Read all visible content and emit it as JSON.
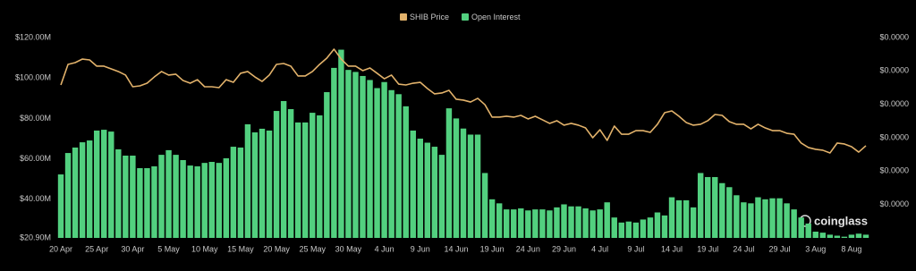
{
  "chart_data": {
    "type": "bar",
    "legend": "top",
    "categories": [
      "20 Apr",
      null,
      null,
      null,
      null,
      "25 Apr",
      null,
      null,
      null,
      null,
      "30 Apr",
      null,
      null,
      null,
      null,
      "5 May",
      null,
      null,
      null,
      null,
      "10 May",
      null,
      null,
      null,
      null,
      "15 May",
      null,
      null,
      null,
      null,
      "20 May",
      null,
      null,
      null,
      null,
      "25 May",
      null,
      null,
      null,
      null,
      "30 May",
      null,
      null,
      null,
      null,
      "4 Jun",
      null,
      null,
      null,
      null,
      "9 Jun",
      null,
      null,
      null,
      null,
      "14 Jun",
      null,
      null,
      null,
      null,
      "19 Jun",
      null,
      null,
      null,
      null,
      "24 Jun",
      null,
      null,
      null,
      null,
      "29 Jun",
      null,
      null,
      null,
      null,
      "4 Jul",
      null,
      null,
      null,
      null,
      "9 Jul",
      null,
      null,
      null,
      null,
      "14 Jul",
      null,
      null,
      null,
      null,
      "19 Jul",
      null,
      null,
      null,
      null,
      "24 Jul",
      null,
      null,
      null,
      null,
      "29 Jul",
      null,
      null,
      null,
      null,
      "3 Aug",
      null,
      null,
      null,
      null,
      "8 Aug",
      null,
      null
    ],
    "series": [
      {
        "name": "SHIB Price",
        "type": "line",
        "axis": "y2",
        "color": "#e2b26b",
        "values": [
          2.574e-05,
          2.759e-05,
          2.775e-05,
          2.807e-05,
          2.799e-05,
          2.743e-05,
          2.743e-05,
          2.719e-05,
          2.695e-05,
          2.663e-05,
          2.558e-05,
          2.566e-05,
          2.59e-05,
          2.646e-05,
          2.695e-05,
          2.663e-05,
          2.671e-05,
          2.614e-05,
          2.59e-05,
          2.622e-05,
          2.558e-05,
          2.558e-05,
          2.55e-05,
          2.622e-05,
          2.598e-05,
          2.679e-05,
          2.695e-05,
          2.646e-05,
          2.606e-05,
          2.663e-05,
          2.759e-05,
          2.767e-05,
          2.743e-05,
          2.655e-05,
          2.655e-05,
          2.695e-05,
          2.759e-05,
          2.815e-05,
          2.896e-05,
          2.807e-05,
          2.743e-05,
          2.743e-05,
          2.703e-05,
          2.727e-05,
          2.679e-05,
          2.63e-05,
          2.663e-05,
          2.582e-05,
          2.574e-05,
          2.59e-05,
          2.598e-05,
          2.542e-05,
          2.494e-05,
          2.502e-05,
          2.526e-05,
          2.446e-05,
          2.438e-05,
          2.421e-05,
          2.454e-05,
          2.397e-05,
          2.285e-05,
          2.285e-05,
          2.293e-05,
          2.285e-05,
          2.301e-05,
          2.269e-05,
          2.293e-05,
          2.261e-05,
          2.229e-05,
          2.253e-05,
          2.213e-05,
          2.229e-05,
          2.213e-05,
          2.188e-05,
          2.1e-05,
          2.172e-05,
          2.076e-05,
          2.205e-05,
          2.132e-05,
          2.132e-05,
          2.164e-05,
          2.164e-05,
          2.148e-05,
          2.221e-05,
          2.325e-05,
          2.341e-05,
          2.293e-05,
          2.237e-05,
          2.213e-05,
          2.221e-05,
          2.253e-05,
          2.309e-05,
          2.301e-05,
          2.245e-05,
          2.221e-05,
          2.221e-05,
          2.18e-05,
          2.221e-05,
          2.188e-05,
          2.164e-05,
          2.164e-05,
          2.14e-05,
          2.132e-05,
          2.052e-05,
          2.012e-05,
          1.996e-05,
          1.988e-05,
          1.963e-05,
          2.052e-05,
          2.044e-05,
          2.02e-05,
          1.971e-05,
          2.028e-05
        ]
      },
      {
        "name": "Open Interest",
        "color": "#52d07f",
        "values": [
          52.3,
          62.9,
          65.6,
          68.2,
          69.1,
          74,
          74.4,
          73.5,
          64.7,
          61.6,
          61.6,
          55.4,
          55.4,
          56.3,
          62,
          64.3,
          62,
          59.4,
          56.7,
          56.3,
          58,
          58.5,
          58,
          60.3,
          66,
          65.6,
          77.1,
          73.1,
          74.9,
          74,
          83.7,
          88.6,
          84.6,
          78,
          78,
          82.8,
          81.5,
          93,
          105,
          114,
          104,
          103,
          101,
          99,
          95,
          98,
          94,
          92,
          86,
          74,
          70,
          68,
          66,
          62,
          85,
          80,
          75,
          72,
          72,
          53,
          40,
          38,
          35,
          35,
          35.5,
          34.5,
          35,
          35,
          34.5,
          36,
          37.5,
          36.5,
          36.5,
          35.5,
          34.5,
          35,
          38.5,
          31,
          28.5,
          29,
          28.5,
          30,
          31,
          33.5,
          32,
          41,
          39.5,
          39.5,
          36,
          53,
          51,
          51,
          48,
          46,
          42,
          38.5,
          38,
          41,
          40,
          40.5,
          40.5,
          38,
          35,
          31,
          28,
          24,
          23.5,
          22.5,
          22,
          21.5,
          22.5,
          23,
          22.5
        ]
      }
    ],
    "ylim": [
      20.9,
      120
    ],
    "yticks": [
      {
        "value": 20.9,
        "label": "$20.90M"
      },
      {
        "value": 40,
        "label": "$40.00M"
      },
      {
        "value": 60,
        "label": "$60.00M"
      },
      {
        "value": 80,
        "label": "$80.00M"
      },
      {
        "value": 100,
        "label": "$100.00M"
      },
      {
        "value": 120,
        "label": "$120.00M"
      }
    ],
    "y2lim": [
      1.2e-05,
      3e-05
    ],
    "y2ticks": [
      {
        "value": 1.5e-05,
        "label": "$0.0000"
      },
      {
        "value": 1.8e-05,
        "label": "$0.0000"
      },
      {
        "value": 2.1e-05,
        "label": "$0.0000"
      },
      {
        "value": 2.4e-05,
        "label": "$0.0000"
      },
      {
        "value": 2.7e-05,
        "label": "$0.0000"
      },
      {
        "value": 3e-05,
        "label": "$0.0000"
      }
    ],
    "grid": false,
    "watermark": "coinglass"
  }
}
